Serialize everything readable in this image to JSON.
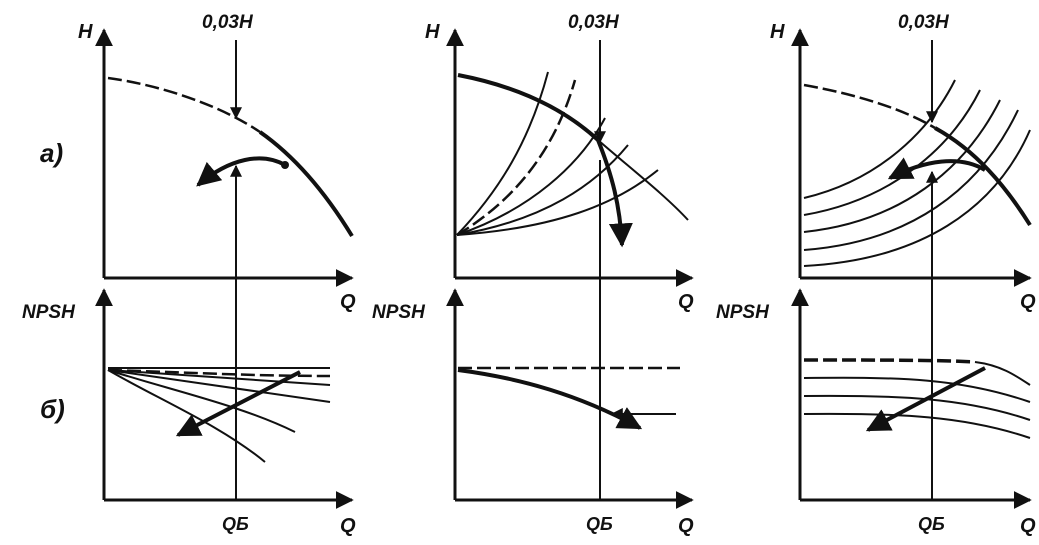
{
  "row_labels": {
    "top": "а)",
    "bottom": "б)"
  },
  "panels": [
    {
      "h_axis": "H",
      "top_marker": "0,03H",
      "q_axis_top": "Q",
      "npsh_axis": "NPSH",
      "q_axis_bottom": "Q",
      "q_marker": "QБ"
    },
    {
      "h_axis": "H",
      "top_marker": "0,03H",
      "q_axis_top": "Q",
      "npsh_axis": "NPSH",
      "q_axis_bottom": "Q",
      "q_marker": "QБ"
    },
    {
      "h_axis": "H",
      "top_marker": "0,03H",
      "q_axis_top": "Q",
      "npsh_axis": "NPSH",
      "q_axis_bottom": "Q",
      "q_marker": "QБ"
    }
  ]
}
